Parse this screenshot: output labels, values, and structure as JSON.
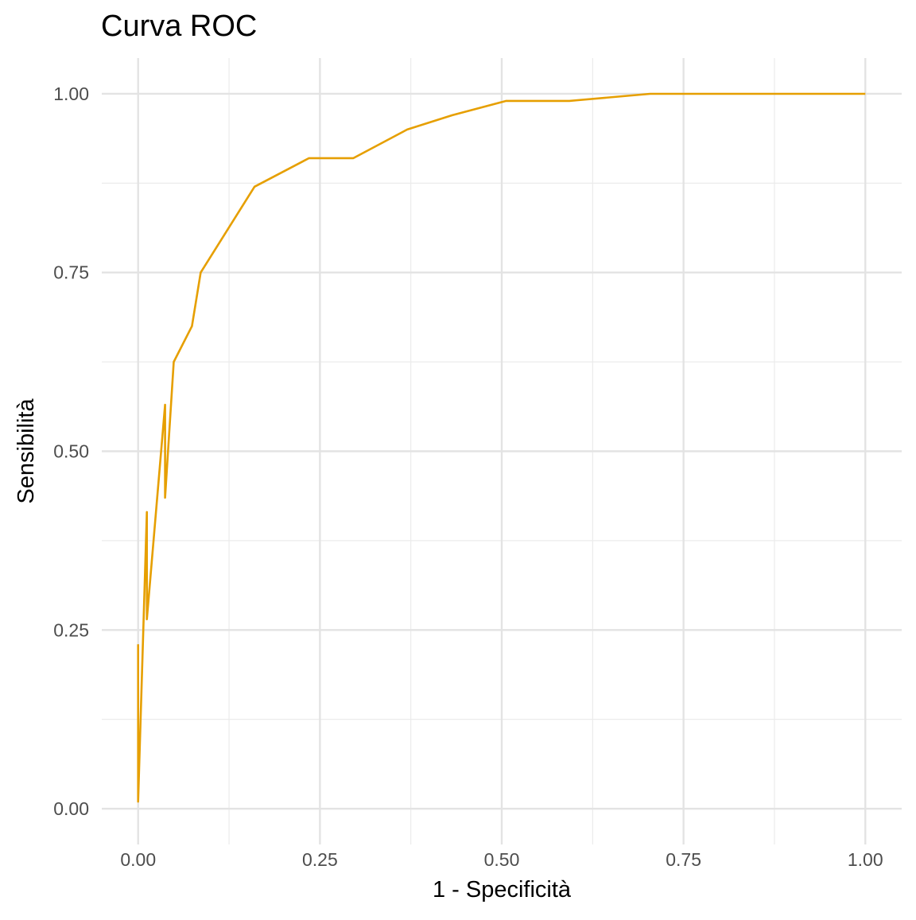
{
  "chart_data": {
    "type": "line",
    "title": "Curva ROC",
    "xlabel": "1 - Specificità",
    "ylabel": "Sensibilità",
    "xlim": [
      -0.05,
      1.05
    ],
    "ylim": [
      -0.05,
      1.05
    ],
    "x_ticks": [
      0.0,
      0.25,
      0.5,
      0.75,
      1.0
    ],
    "x_tick_labels": [
      "0.00",
      "0.25",
      "0.50",
      "0.75",
      "1.00"
    ],
    "y_ticks": [
      0.0,
      0.25,
      0.5,
      0.75,
      1.0
    ],
    "y_tick_labels": [
      "0.00",
      "0.25",
      "0.50",
      "0.75",
      "1.00"
    ],
    "grid": true,
    "legend": "none",
    "series": [
      {
        "color": "#E69F00",
        "x": [
          0.0,
          0.0,
          0.0,
          0.012,
          0.012,
          0.037,
          0.037,
          0.049,
          0.074,
          0.086,
          0.16,
          0.235,
          0.296,
          0.37,
          0.432,
          0.506,
          0.593,
          0.704,
          0.79,
          1.0
        ],
        "y": [
          0.23,
          0.01,
          0.01,
          0.415,
          0.265,
          0.565,
          0.435,
          0.625,
          0.675,
          0.75,
          0.87,
          0.91,
          0.91,
          0.95,
          0.97,
          0.99,
          0.99,
          1.0,
          1.0,
          1.0
        ]
      }
    ]
  }
}
